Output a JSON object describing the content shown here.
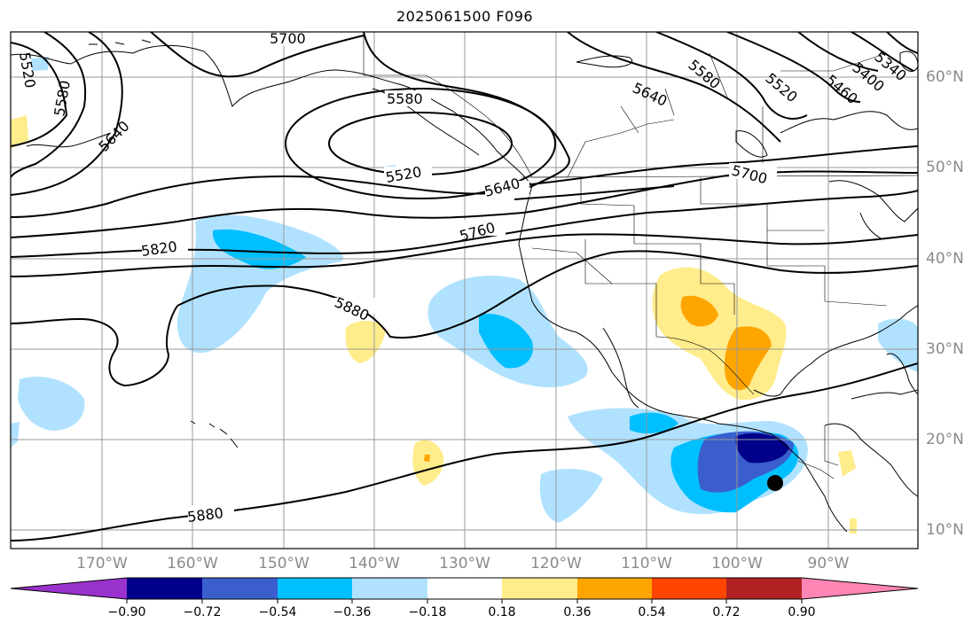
{
  "title": "2025061500 F096",
  "map": {
    "lon_labels": [
      "170°W",
      "160°W",
      "150°W",
      "140°W",
      "130°W",
      "120°W",
      "110°W",
      "100°W",
      "90°W"
    ],
    "lat_labels": [
      "60°N",
      "50°N",
      "40°N",
      "30°N",
      "20°N",
      "10°N"
    ],
    "contour_labels": [
      "5700",
      "5520",
      "5580",
      "5640",
      "5580",
      "5520",
      "5640",
      "5580",
      "5520",
      "5460",
      "5400",
      "5340",
      "5700",
      "5640",
      "5760",
      "5820",
      "5880",
      "5880"
    ],
    "marker": "black-dot"
  },
  "colorbar": {
    "ticks": [
      "−0.90",
      "−0.72",
      "−0.54",
      "−0.36",
      "−0.18",
      "0.18",
      "0.36",
      "0.54",
      "0.72",
      "0.90"
    ],
    "colors": [
      "#9932cc",
      "#00008b",
      "#3a5fcd",
      "#00bfff",
      "#b0e2ff",
      "#ffffff",
      "#ffec8b",
      "#ffa500",
      "#ff4500",
      "#b22222",
      "#ff86b4"
    ]
  }
}
